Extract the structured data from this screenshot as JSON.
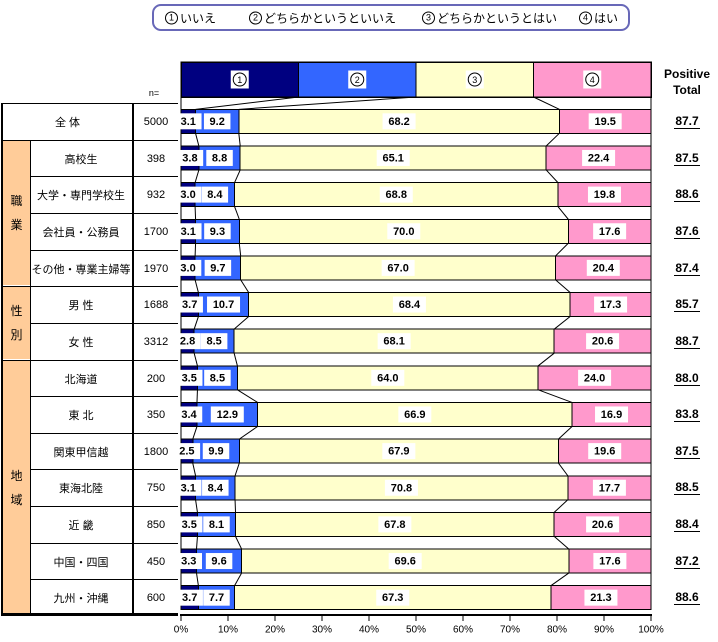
{
  "legend": {
    "items": [
      {
        "mark": "1",
        "label": "いいえ"
      },
      {
        "mark": "2",
        "label": "どちらかというといいえ"
      },
      {
        "mark": "3",
        "label": "どちらかというとはい"
      },
      {
        "mark": "4",
        "label": "はい"
      }
    ]
  },
  "header": {
    "n_label": "n=",
    "positive_total_line1": "Positive",
    "positive_total_line2": "Total",
    "category_marks": [
      "1",
      "2",
      "3",
      "4"
    ]
  },
  "chart_data": {
    "type": "bar",
    "variant": "horizontal-stacked-100percent",
    "title": "",
    "series_labels": [
      "①いいえ",
      "②どちらかというといいえ",
      "③どちらかというとはい",
      "④はい"
    ],
    "colors": [
      "#000080",
      "#3366FF",
      "#FFFFCC",
      "#FF99CC"
    ],
    "group_column_color": "#FFCC99",
    "xlim": [
      0,
      100
    ],
    "x_ticks": [
      "0%",
      "10%",
      "20%",
      "30%",
      "40%",
      "50%",
      "60%",
      "70%",
      "80%",
      "90%",
      "100%"
    ],
    "groups": [
      {
        "label": "",
        "rows": [
          {
            "label": "全 体",
            "n": "5000",
            "values": [
              3.1,
              9.2,
              68.2,
              19.5
            ],
            "positive_total": "87.7"
          }
        ]
      },
      {
        "label": "職業",
        "rows": [
          {
            "label": "高校生",
            "n": "398",
            "values": [
              3.8,
              8.8,
              65.1,
              22.4
            ],
            "positive_total": "87.5"
          },
          {
            "label": "大学・専門学校生",
            "n": "932",
            "values": [
              3.0,
              8.4,
              68.8,
              19.8
            ],
            "positive_total": "88.6"
          },
          {
            "label": "会社員・公務員",
            "n": "1700",
            "values": [
              3.1,
              9.3,
              70.0,
              17.6
            ],
            "positive_total": "87.6"
          },
          {
            "label": "その他・専業主婦等",
            "n": "1970",
            "values": [
              3.0,
              9.7,
              67.0,
              20.4
            ],
            "positive_total": "87.4"
          }
        ]
      },
      {
        "label": "性別",
        "rows": [
          {
            "label": "男 性",
            "n": "1688",
            "values": [
              3.7,
              10.7,
              68.4,
              17.3
            ],
            "positive_total": "85.7"
          },
          {
            "label": "女 性",
            "n": "3312",
            "values": [
              2.8,
              8.5,
              68.1,
              20.6
            ],
            "positive_total": "88.7"
          }
        ]
      },
      {
        "label": "地域",
        "rows": [
          {
            "label": "北海道",
            "n": "200",
            "values": [
              3.5,
              8.5,
              64.0,
              24.0
            ],
            "positive_total": "88.0"
          },
          {
            "label": "東 北",
            "n": "350",
            "values": [
              3.4,
              12.9,
              66.9,
              16.9
            ],
            "positive_total": "83.8"
          },
          {
            "label": "関東甲信越",
            "n": "1800",
            "values": [
              2.5,
              9.9,
              67.9,
              19.6
            ],
            "positive_total": "87.5"
          },
          {
            "label": "東海北陸",
            "n": "750",
            "values": [
              3.1,
              8.4,
              70.8,
              17.7
            ],
            "positive_total": "88.5"
          },
          {
            "label": "近 畿",
            "n": "850",
            "values": [
              3.5,
              8.1,
              67.8,
              20.6
            ],
            "positive_total": "88.4"
          },
          {
            "label": "中国・四国",
            "n": "450",
            "values": [
              3.3,
              9.6,
              69.6,
              17.6
            ],
            "positive_total": "87.2"
          },
          {
            "label": "九州・沖縄",
            "n": "600",
            "values": [
              3.7,
              7.7,
              67.3,
              21.3
            ],
            "positive_total": "88.6"
          }
        ]
      }
    ]
  }
}
